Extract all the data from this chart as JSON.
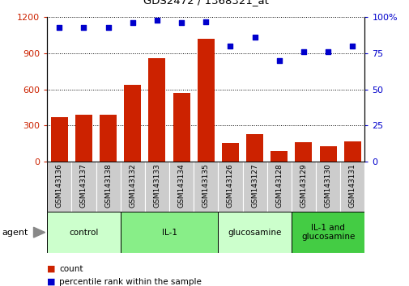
{
  "title": "GDS2472 / 1368321_at",
  "categories": [
    "GSM143136",
    "GSM143137",
    "GSM143138",
    "GSM143132",
    "GSM143133",
    "GSM143134",
    "GSM143135",
    "GSM143126",
    "GSM143127",
    "GSM143128",
    "GSM143129",
    "GSM143130",
    "GSM143131"
  ],
  "bar_values": [
    370,
    390,
    390,
    640,
    860,
    570,
    1020,
    155,
    230,
    90,
    160,
    130,
    165
  ],
  "dot_values": [
    93,
    93,
    93,
    96,
    98,
    96,
    97,
    80,
    86,
    70,
    76,
    76,
    80
  ],
  "groups": [
    {
      "label": "control",
      "start": 0,
      "end": 3,
      "color": "#ccffcc"
    },
    {
      "label": "IL-1",
      "start": 3,
      "end": 7,
      "color": "#88ee88"
    },
    {
      "label": "glucosamine",
      "start": 7,
      "end": 10,
      "color": "#ccffcc"
    },
    {
      "label": "IL-1 and\nglucosamine",
      "start": 10,
      "end": 13,
      "color": "#44cc44"
    }
  ],
  "bar_color": "#cc2200",
  "dot_color": "#0000cc",
  "left_ylim": [
    0,
    1200
  ],
  "right_ylim": [
    0,
    100
  ],
  "left_yticks": [
    0,
    300,
    600,
    900,
    1200
  ],
  "right_yticks": [
    0,
    25,
    50,
    75,
    100
  ],
  "right_yticklabels": [
    "0",
    "25",
    "50",
    "75",
    "100%"
  ],
  "legend_count_label": "count",
  "legend_pct_label": "percentile rank within the sample",
  "tick_area_color": "#cccccc",
  "group_border_color": "#000000"
}
